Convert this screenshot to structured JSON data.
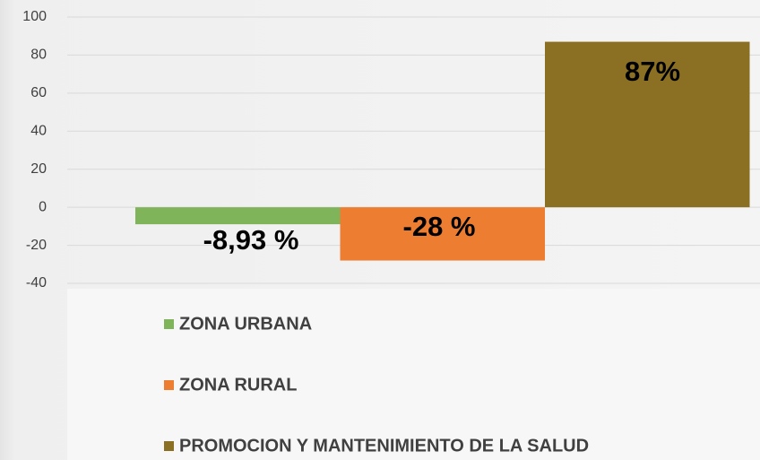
{
  "chart_data": {
    "type": "bar",
    "series": [
      {
        "name": "ZONA URBANA",
        "color": "#7fb45a",
        "values": [
          -8.93
        ],
        "value_labels": [
          "-8,93 %"
        ]
      },
      {
        "name": "ZONA RURAL",
        "color": "#ed7d31",
        "values": [
          -28
        ],
        "value_labels": [
          "-28 %"
        ]
      },
      {
        "name": "PROMOCION Y MANTENIMIENTO DE LA SALUD",
        "color": "#8b7023",
        "values": [
          87
        ],
        "value_labels": [
          "87%"
        ]
      }
    ],
    "ylim": [
      -40,
      100
    ],
    "yticks": [
      -40,
      -20,
      0,
      20,
      40,
      60,
      80,
      100
    ],
    "grid": true,
    "legend": "bottom"
  }
}
